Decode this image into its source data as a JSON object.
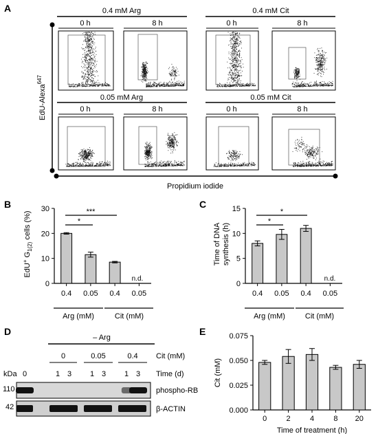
{
  "panels": {
    "A": {
      "label": "A",
      "groups": [
        {
          "condition": "0.4 mM Arg",
          "times": [
            "0 h",
            "8 h"
          ]
        },
        {
          "condition": "0.4 mM Cit",
          "times": [
            "0 h",
            "8 h"
          ]
        },
        {
          "condition": "0.05 mM Arg",
          "times": [
            "0 h",
            "8 h"
          ]
        },
        {
          "condition": "0.05 mM Cit",
          "times": [
            "0 h",
            "8 h"
          ]
        }
      ],
      "y_axis_label": "EdU-Alexa",
      "y_axis_label_sup": "647",
      "x_axis_label": "Propidium iodide"
    },
    "B": {
      "label": "B",
      "ylabel_main": "EdU",
      "ylabel_sup": "+",
      "ylabel_mid": " G",
      "ylabel_sub": "1(2)",
      "ylabel_end": " cells (%)",
      "sig": [
        "*",
        "***"
      ],
      "nd_label": "n.d.",
      "group_labels": [
        "Arg (mM)",
        "Cit (mM)"
      ]
    },
    "C": {
      "label": "C",
      "ylabel_line1": "Time of DNA",
      "ylabel_line2": "synthesis (h)",
      "sig": [
        "*",
        "*"
      ],
      "nd_label": "n.d.",
      "group_labels": [
        "Arg (mM)",
        "Cit (mM)"
      ]
    },
    "D": {
      "label": "D",
      "treatment": "– Arg",
      "kda_label": "kDa",
      "cit_label": "Cit (mM)",
      "time_label": "Time (d)",
      "cit_values": [
        "0",
        "0.05",
        "0.4"
      ],
      "lane_labels": [
        "0",
        "1",
        "3",
        "1",
        "3",
        "1",
        "3"
      ],
      "markers": [
        "110",
        "42"
      ],
      "bands": [
        "phospho-RB",
        "β-ACTIN"
      ],
      "phospho_rb_intensity": [
        1.0,
        0.0,
        0.0,
        0.0,
        0.0,
        0.55,
        1.0
      ],
      "actin_intensity": [
        1,
        1,
        1,
        1,
        1,
        1,
        1
      ]
    },
    "E": {
      "label": "E"
    }
  },
  "chart_data": [
    {
      "id": "B",
      "type": "bar",
      "categories": [
        "0.4",
        "0.05",
        "0.4",
        "0.05"
      ],
      "values": [
        20.0,
        11.5,
        8.5,
        0
      ],
      "errors": [
        0.3,
        1.0,
        0.3,
        0
      ],
      "not_determined": [
        false,
        false,
        false,
        true
      ],
      "ylim": [
        0,
        30
      ],
      "yticks": [
        0,
        10,
        20,
        30
      ],
      "title": "",
      "xlabel": "",
      "ylabel": "EdU+ G1(2) cells (%)"
    },
    {
      "id": "C",
      "type": "bar",
      "categories": [
        "0.4",
        "0.05",
        "0.4",
        "0.05"
      ],
      "values": [
        8.0,
        9.8,
        11.0,
        0
      ],
      "errors": [
        0.5,
        1.0,
        0.6,
        0
      ],
      "not_determined": [
        false,
        false,
        false,
        true
      ],
      "ylim": [
        0,
        15
      ],
      "yticks": [
        0,
        5,
        10,
        15
      ],
      "title": "",
      "xlabel": "",
      "ylabel": "Time of DNA synthesis (h)"
    },
    {
      "id": "E",
      "type": "bar",
      "categories": [
        "0",
        "2",
        "4",
        "8",
        "20"
      ],
      "values": [
        0.048,
        0.054,
        0.056,
        0.043,
        0.046
      ],
      "errors": [
        0.002,
        0.007,
        0.006,
        0.002,
        0.004
      ],
      "ylim": [
        0,
        0.075
      ],
      "yticks": [
        "0.000",
        "0.025",
        "0.050",
        "0.075"
      ],
      "title": "",
      "xlabel": "Time of treatment (h)",
      "ylabel": "Cit (mM)"
    }
  ]
}
